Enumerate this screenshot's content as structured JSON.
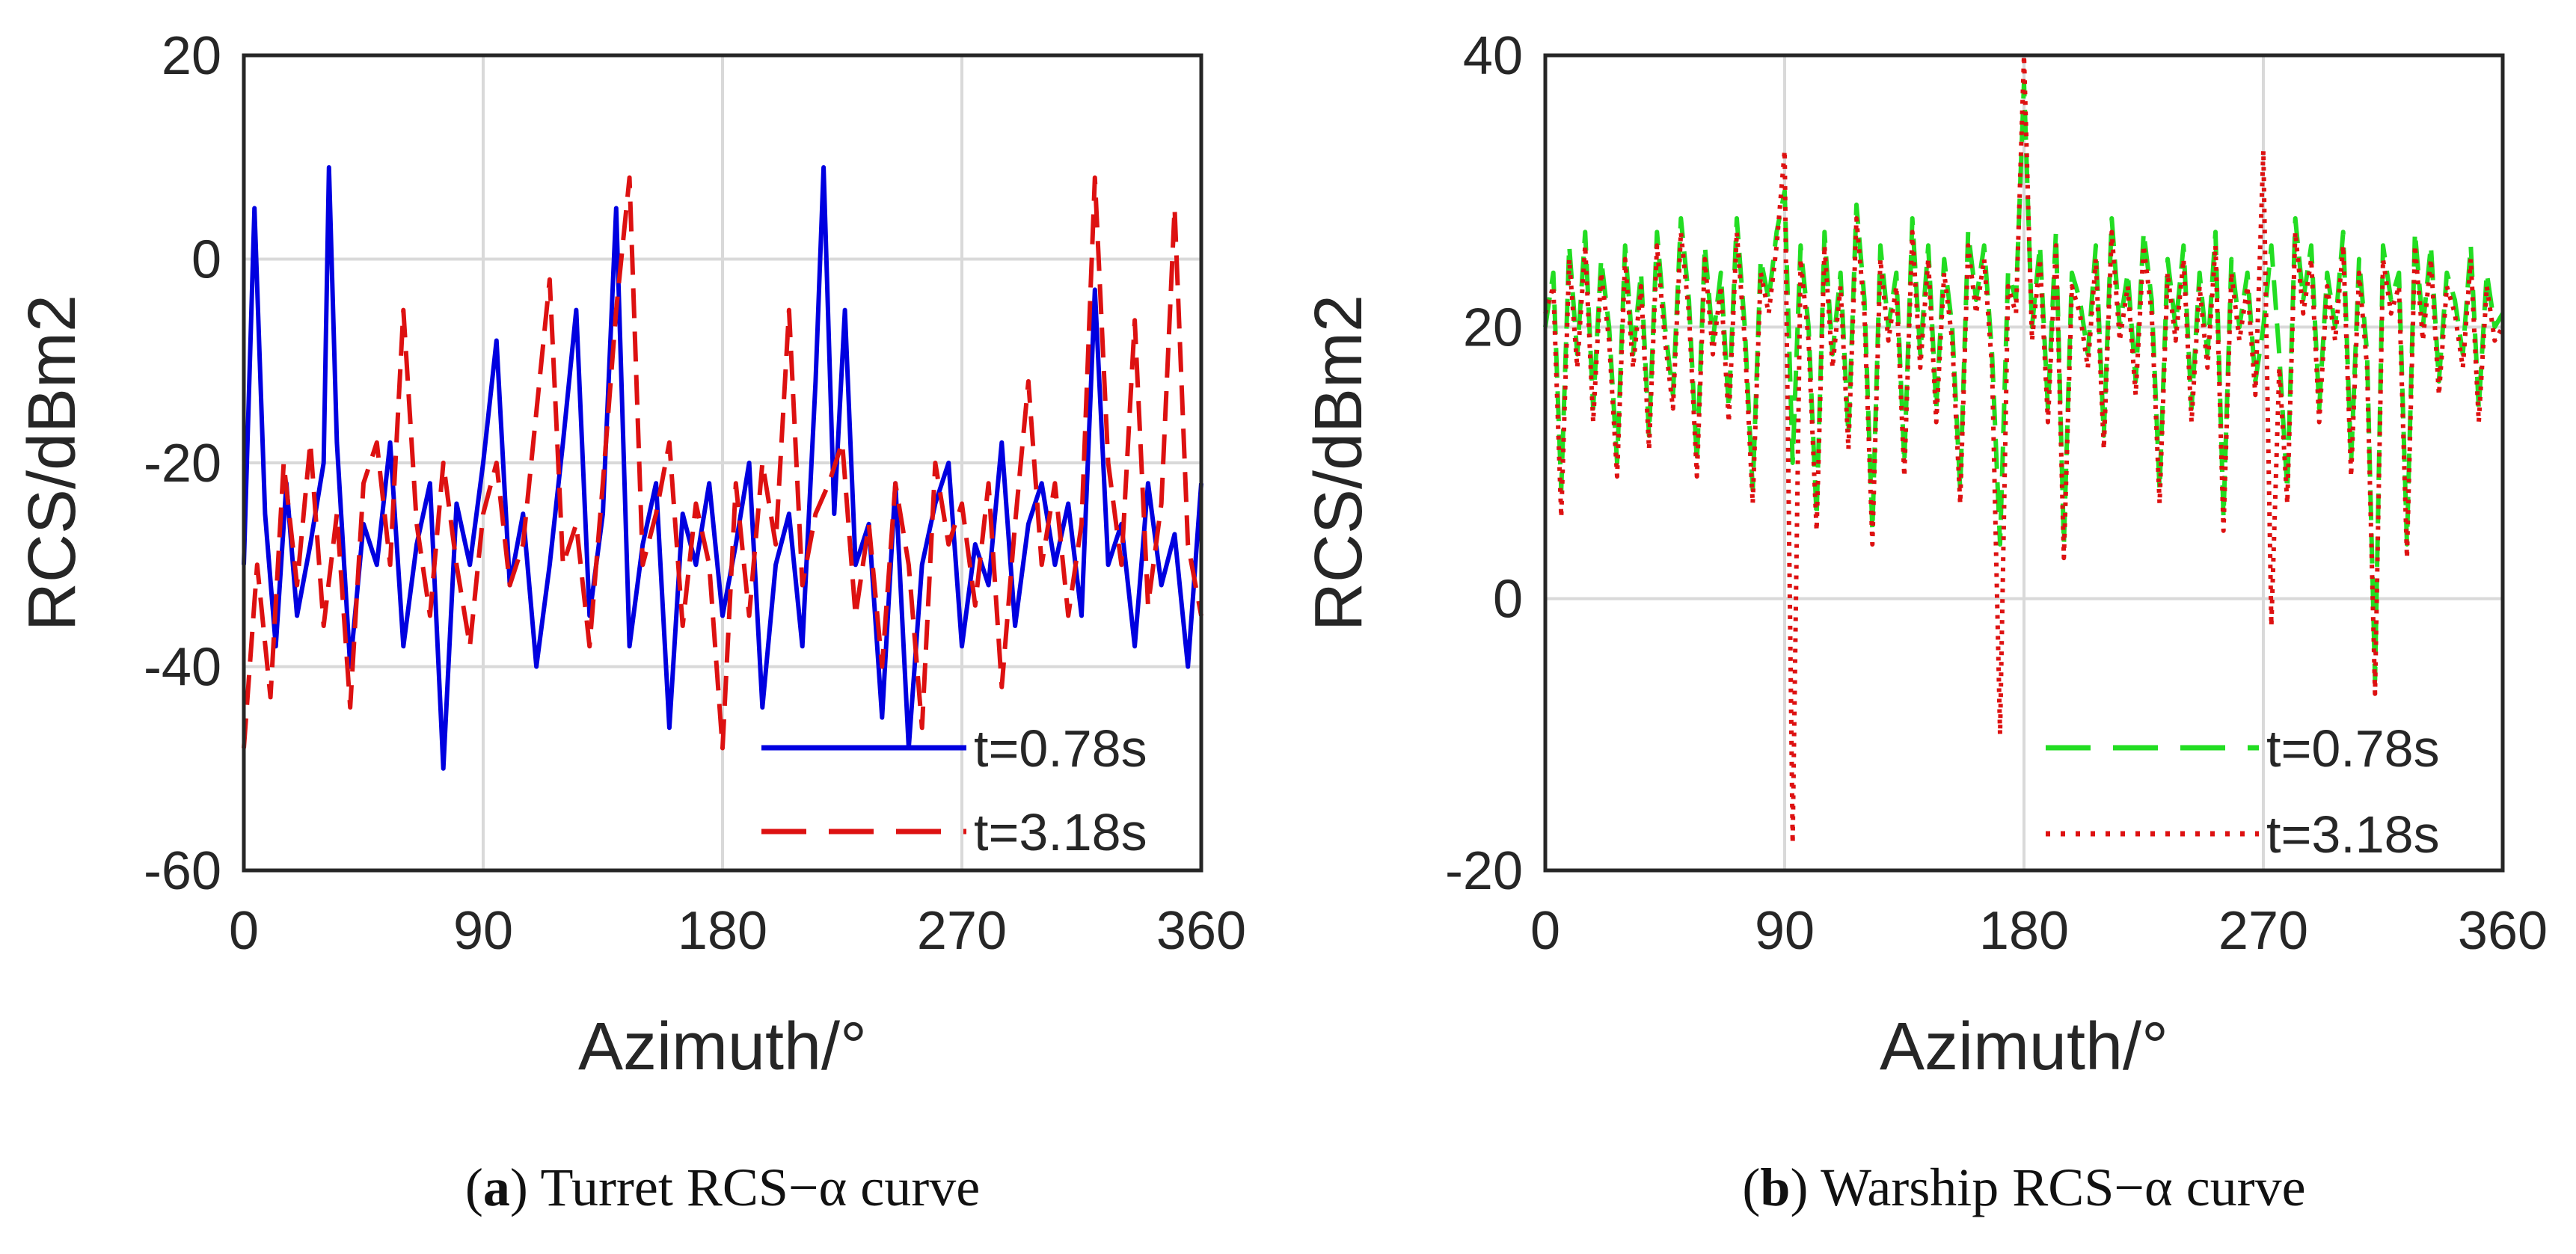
{
  "chart_data": [
    {
      "id": "a",
      "type": "line",
      "caption_letter": "a",
      "caption_text": "Turret RCS−α curve",
      "xlabel": "Azimuth/°",
      "ylabel": "RCS/dBm2",
      "xlim": [
        0,
        360
      ],
      "ylim": [
        -60,
        20
      ],
      "xticks": [
        0,
        90,
        180,
        270,
        360
      ],
      "yticks": [
        -60,
        -40,
        -20,
        0,
        20
      ],
      "grid": true,
      "legend_position": "bottom-right",
      "series": [
        {
          "name": "t=0.78s",
          "color": "#0000e0",
          "style": "solid",
          "x": [
            0,
            4,
            8,
            12,
            16,
            20,
            25,
            30,
            32,
            35,
            40,
            45,
            50,
            55,
            60,
            65,
            70,
            75,
            80,
            85,
            90,
            95,
            100,
            105,
            110,
            115,
            120,
            125,
            130,
            135,
            140,
            145,
            150,
            155,
            160,
            165,
            170,
            175,
            180,
            185,
            190,
            195,
            200,
            205,
            210,
            215,
            218,
            222,
            226,
            230,
            235,
            240,
            245,
            250,
            255,
            260,
            265,
            270,
            275,
            280,
            285,
            290,
            295,
            300,
            305,
            310,
            315,
            320,
            325,
            330,
            335,
            340,
            345,
            350,
            355,
            360
          ],
          "values": [
            -30,
            5,
            -25,
            -38,
            -22,
            -35,
            -28,
            -20,
            9,
            -18,
            -40,
            -26,
            -30,
            -18,
            -38,
            -28,
            -22,
            -50,
            -24,
            -30,
            -20,
            -8,
            -32,
            -25,
            -40,
            -30,
            -18,
            -5,
            -35,
            -25,
            5,
            -38,
            -28,
            -22,
            -46,
            -25,
            -30,
            -22,
            -35,
            -28,
            -20,
            -44,
            -30,
            -25,
            -38,
            -12,
            9,
            -25,
            -5,
            -30,
            -26,
            -45,
            -22,
            -48,
            -30,
            -24,
            -20,
            -38,
            -28,
            -32,
            -18,
            -36,
            -26,
            -22,
            -30,
            -24,
            -35,
            -3,
            -30,
            -26,
            -38,
            -22,
            -32,
            -27,
            -40,
            -22
          ]
        },
        {
          "name": "t=3.18s",
          "color": "#dd1111",
          "style": "dashed",
          "x": [
            0,
            5,
            10,
            15,
            20,
            25,
            30,
            35,
            40,
            45,
            50,
            55,
            60,
            65,
            70,
            75,
            80,
            85,
            90,
            95,
            100,
            105,
            110,
            115,
            120,
            125,
            130,
            135,
            140,
            145,
            150,
            155,
            160,
            165,
            170,
            175,
            180,
            185,
            190,
            195,
            200,
            205,
            210,
            215,
            220,
            225,
            230,
            235,
            240,
            245,
            250,
            255,
            260,
            265,
            270,
            275,
            280,
            285,
            290,
            295,
            300,
            305,
            310,
            315,
            320,
            325,
            330,
            335,
            340,
            345,
            350,
            355,
            360
          ],
          "values": [
            -48,
            -30,
            -43,
            -20,
            -32,
            -18,
            -36,
            -25,
            -44,
            -22,
            -18,
            -30,
            -5,
            -26,
            -35,
            -20,
            -30,
            -38,
            -25,
            -20,
            -32,
            -28,
            -15,
            -2,
            -30,
            -26,
            -38,
            -22,
            -5,
            8,
            -30,
            -25,
            -18,
            -36,
            -24,
            -30,
            -48,
            -22,
            -35,
            -20,
            -28,
            -5,
            -32,
            -25,
            -22,
            -18,
            -35,
            -26,
            -40,
            -22,
            -30,
            -46,
            -20,
            -28,
            -24,
            -34,
            -22,
            -42,
            -26,
            -12,
            -30,
            -22,
            -35,
            -26,
            8,
            -20,
            -30,
            -6,
            -34,
            -24,
            5,
            -28,
            -35
          ]
        }
      ]
    },
    {
      "id": "b",
      "type": "line",
      "caption_letter": "b",
      "caption_text": "Warship RCS−α curve",
      "xlabel": "Azimuth/°",
      "ylabel": "RCS/dBm2",
      "xlim": [
        0,
        360
      ],
      "ylim": [
        -20,
        40
      ],
      "xticks": [
        0,
        90,
        180,
        270,
        360
      ],
      "yticks": [
        -20,
        0,
        20,
        40
      ],
      "grid": true,
      "legend_position": "bottom-right",
      "series": [
        {
          "name": "t=0.78s",
          "color": "#22dd22",
          "style": "dashed",
          "x": [
            0,
            3,
            6,
            9,
            12,
            15,
            18,
            21,
            24,
            27,
            30,
            33,
            36,
            39,
            42,
            45,
            48,
            51,
            54,
            57,
            60,
            63,
            66,
            69,
            72,
            75,
            78,
            81,
            84,
            87,
            90,
            93,
            96,
            99,
            102,
            105,
            108,
            111,
            114,
            117,
            120,
            123,
            126,
            129,
            132,
            135,
            138,
            141,
            144,
            147,
            150,
            153,
            156,
            159,
            162,
            165,
            168,
            171,
            174,
            177,
            180,
            183,
            186,
            189,
            192,
            195,
            198,
            201,
            204,
            207,
            210,
            213,
            216,
            219,
            222,
            225,
            228,
            231,
            234,
            237,
            240,
            243,
            246,
            249,
            252,
            255,
            258,
            261,
            264,
            267,
            270,
            273,
            276,
            279,
            282,
            285,
            288,
            291,
            294,
            297,
            300,
            303,
            306,
            309,
            312,
            315,
            318,
            321,
            324,
            327,
            330,
            333,
            336,
            339,
            342,
            345,
            348,
            351,
            354,
            357,
            360
          ],
          "values": [
            20,
            24,
            8,
            26,
            18,
            27,
            14,
            25,
            20,
            10,
            26,
            18,
            24,
            12,
            27,
            20,
            15,
            28,
            22,
            10,
            26,
            19,
            24,
            14,
            28,
            20,
            8,
            25,
            22,
            27,
            30,
            10,
            26,
            20,
            6,
            27,
            18,
            24,
            12,
            29,
            22,
            5,
            26,
            20,
            24,
            10,
            28,
            18,
            26,
            14,
            25,
            20,
            8,
            27,
            22,
            26,
            18,
            4,
            24,
            22,
            38,
            20,
            26,
            14,
            27,
            4,
            24,
            22,
            18,
            26,
            12,
            28,
            20,
            24,
            16,
            27,
            22,
            8,
            25,
            20,
            26,
            14,
            24,
            18,
            27,
            6,
            25,
            20,
            24,
            16,
            20,
            26,
            18,
            8,
            28,
            22,
            26,
            14,
            24,
            20,
            27,
            10,
            25,
            18,
            -6,
            26,
            22,
            24,
            4,
            27,
            20,
            26,
            16,
            24,
            22,
            18,
            26,
            14,
            24,
            20,
            21
          ]
        },
        {
          "name": "t=3.18s",
          "color": "#dd1111",
          "style": "dotted",
          "x": [
            0,
            3,
            6,
            9,
            12,
            15,
            18,
            21,
            24,
            27,
            30,
            33,
            36,
            39,
            42,
            45,
            48,
            51,
            54,
            57,
            60,
            63,
            66,
            69,
            72,
            75,
            78,
            81,
            84,
            87,
            90,
            93,
            96,
            99,
            102,
            105,
            108,
            111,
            114,
            117,
            120,
            123,
            126,
            129,
            132,
            135,
            138,
            141,
            144,
            147,
            150,
            153,
            156,
            159,
            162,
            165,
            168,
            171,
            174,
            177,
            180,
            183,
            186,
            189,
            192,
            195,
            198,
            201,
            204,
            207,
            210,
            213,
            216,
            219,
            222,
            225,
            228,
            231,
            234,
            237,
            240,
            243,
            246,
            249,
            252,
            255,
            258,
            261,
            264,
            267,
            270,
            273,
            276,
            279,
            282,
            285,
            288,
            291,
            294,
            297,
            300,
            303,
            306,
            309,
            312,
            315,
            318,
            321,
            324,
            327,
            330,
            333,
            336,
            339,
            342,
            345,
            348,
            351,
            354,
            357,
            360
          ],
          "values": [
            21,
            23,
            6,
            25,
            17,
            26,
            13,
            24,
            19,
            9,
            25,
            17,
            23,
            11,
            26,
            19,
            14,
            27,
            21,
            9,
            25,
            18,
            23,
            13,
            27,
            19,
            7,
            24,
            21,
            26,
            33,
            -18,
            25,
            19,
            5,
            26,
            17,
            23,
            11,
            28,
            21,
            4,
            25,
            19,
            23,
            9,
            27,
            17,
            25,
            13,
            24,
            19,
            7,
            26,
            21,
            25,
            17,
            -10,
            23,
            21,
            40,
            19,
            25,
            13,
            26,
            3,
            23,
            21,
            17,
            25,
            11,
            27,
            19,
            23,
            15,
            26,
            21,
            7,
            24,
            19,
            25,
            13,
            23,
            17,
            26,
            5,
            24,
            19,
            23,
            15,
            33,
            -2,
            17,
            7,
            27,
            21,
            25,
            13,
            23,
            19,
            26,
            9,
            24,
            17,
            -7,
            25,
            21,
            23,
            3,
            26,
            19,
            25,
            15,
            23,
            21,
            17,
            25,
            13,
            23,
            19,
            20
          ]
        }
      ]
    }
  ]
}
